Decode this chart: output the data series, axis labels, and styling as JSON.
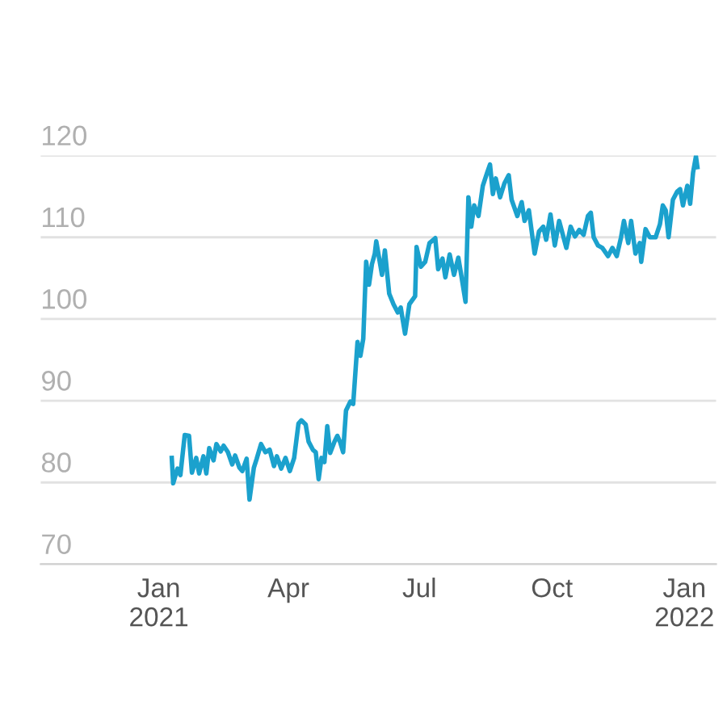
{
  "chart_data": {
    "type": "line",
    "color": "#1ba1cd",
    "grid": "y",
    "line_style": "solid",
    "marker": "none",
    "xlim": [
      "2020-10-11",
      "2022-01-23"
    ],
    "ylim": [
      70,
      120
    ],
    "xticks": [
      {
        "value": "2021-01-01",
        "label": "Jan\n2021"
      },
      {
        "value": "2021-04-01",
        "label": "Apr"
      },
      {
        "value": "2021-07-01",
        "label": "Jul"
      },
      {
        "value": "2021-10-01",
        "label": "Oct"
      },
      {
        "value": "2022-01-01",
        "label": "Jan\n2022"
      }
    ],
    "yticks": [
      70,
      80,
      90,
      100,
      110,
      120
    ],
    "x": [
      "2021-01-10",
      "2021-01-11",
      "2021-01-14",
      "2021-01-16",
      "2021-01-19",
      "2021-01-22",
      "2021-01-24",
      "2021-01-27",
      "2021-01-29",
      "2021-02-01",
      "2021-02-03",
      "2021-02-05",
      "2021-02-08",
      "2021-02-10",
      "2021-02-13",
      "2021-02-15",
      "2021-02-18",
      "2021-02-21",
      "2021-02-23",
      "2021-02-26",
      "2021-02-28",
      "2021-03-03",
      "2021-03-05",
      "2021-03-08",
      "2021-03-10",
      "2021-03-13",
      "2021-03-16",
      "2021-03-19",
      "2021-03-22",
      "2021-03-24",
      "2021-03-27",
      "2021-03-30",
      "2021-04-02",
      "2021-04-05",
      "2021-04-08",
      "2021-04-10",
      "2021-04-13",
      "2021-04-15",
      "2021-04-18",
      "2021-04-20",
      "2021-04-22",
      "2021-04-24",
      "2021-04-26",
      "2021-04-28",
      "2021-04-30",
      "2021-05-03",
      "2021-05-05",
      "2021-05-07",
      "2021-05-09",
      "2021-05-11",
      "2021-05-14",
      "2021-05-16",
      "2021-05-19",
      "2021-05-21",
      "2021-05-23",
      "2021-05-25",
      "2021-05-27",
      "2021-05-29",
      "2021-05-31",
      "2021-06-01",
      "2021-06-05",
      "2021-06-07",
      "2021-06-10",
      "2021-06-13",
      "2021-06-16",
      "2021-06-18",
      "2021-06-21",
      "2021-06-24",
      "2021-06-28",
      "2021-06-29",
      "2021-07-02",
      "2021-07-05",
      "2021-07-08",
      "2021-07-12",
      "2021-07-14",
      "2021-07-17",
      "2021-07-19",
      "2021-07-22",
      "2021-07-25",
      "2021-07-28",
      "2021-07-30",
      "2021-08-02",
      "2021-08-04",
      "2021-08-06",
      "2021-08-08",
      "2021-08-11",
      "2021-08-14",
      "2021-08-17",
      "2021-08-19",
      "2021-08-21",
      "2021-08-23",
      "2021-08-26",
      "2021-08-29",
      "2021-09-01",
      "2021-09-03",
      "2021-09-07",
      "2021-09-10",
      "2021-09-12",
      "2021-09-15",
      "2021-09-19",
      "2021-09-22",
      "2021-09-25",
      "2021-09-27",
      "2021-09-30",
      "2021-10-03",
      "2021-10-06",
      "2021-10-08",
      "2021-10-11",
      "2021-10-14",
      "2021-10-17",
      "2021-10-20",
      "2021-10-23",
      "2021-10-26",
      "2021-10-28",
      "2021-10-30",
      "2021-11-02",
      "2021-11-05",
      "2021-11-09",
      "2021-11-12",
      "2021-11-15",
      "2021-11-18",
      "2021-11-20",
      "2021-11-23",
      "2021-11-25",
      "2021-11-28",
      "2021-12-01",
      "2021-12-02",
      "2021-12-05",
      "2021-12-08",
      "2021-12-12",
      "2021-12-15",
      "2021-12-17",
      "2021-12-19",
      "2021-12-21",
      "2021-12-24",
      "2021-12-27",
      "2021-12-29",
      "2021-12-31",
      "2022-01-03",
      "2022-01-05",
      "2022-01-07",
      "2022-01-09",
      "2022-01-10"
    ],
    "values": [
      83.0,
      79.9,
      81.7,
      80.9,
      85.8,
      85.7,
      81.2,
      83.0,
      81.1,
      83.2,
      81.1,
      84.2,
      82.7,
      84.7,
      83.8,
      84.5,
      83.7,
      82.2,
      83.3,
      81.8,
      81.4,
      82.9,
      77.9,
      81.8,
      82.9,
      84.7,
      83.7,
      84.0,
      82.0,
      83.2,
      81.7,
      83.0,
      81.4,
      83.0,
      87.2,
      87.6,
      87.1,
      85.0,
      84.0,
      83.7,
      80.4,
      83.0,
      82.5,
      86.9,
      83.6,
      85.0,
      85.7,
      84.9,
      83.7,
      88.8,
      89.9,
      89.6,
      97.2,
      95.5,
      97.6,
      107.0,
      104.2,
      106.7,
      108.0,
      109.5,
      105.4,
      108.4,
      103.1,
      101.8,
      100.8,
      101.4,
      98.2,
      101.8,
      102.8,
      108.8,
      106.4,
      107.0,
      109.3,
      109.9,
      106.1,
      107.4,
      105.1,
      107.9,
      105.4,
      107.5,
      105.4,
      102.1,
      114.9,
      111.3,
      113.9,
      112.6,
      116.3,
      117.9,
      118.9,
      115.3,
      117.2,
      114.9,
      116.6,
      117.6,
      114.6,
      112.6,
      114.3,
      112.0,
      113.3,
      108.0,
      110.7,
      111.3,
      109.7,
      112.8,
      109.0,
      112.0,
      110.7,
      108.7,
      111.3,
      110.1,
      110.9,
      110.3,
      112.6,
      113.0,
      110.0,
      109.0,
      108.7,
      107.7,
      108.7,
      107.7,
      110.0,
      112.0,
      109.3,
      112.0,
      108.0,
      109.3,
      107.0,
      111.0,
      110.0,
      110.0,
      111.6,
      113.9,
      113.3,
      110.0,
      114.6,
      115.6,
      115.9,
      113.9,
      116.3,
      114.1,
      117.9,
      119.9,
      118.6
    ]
  }
}
